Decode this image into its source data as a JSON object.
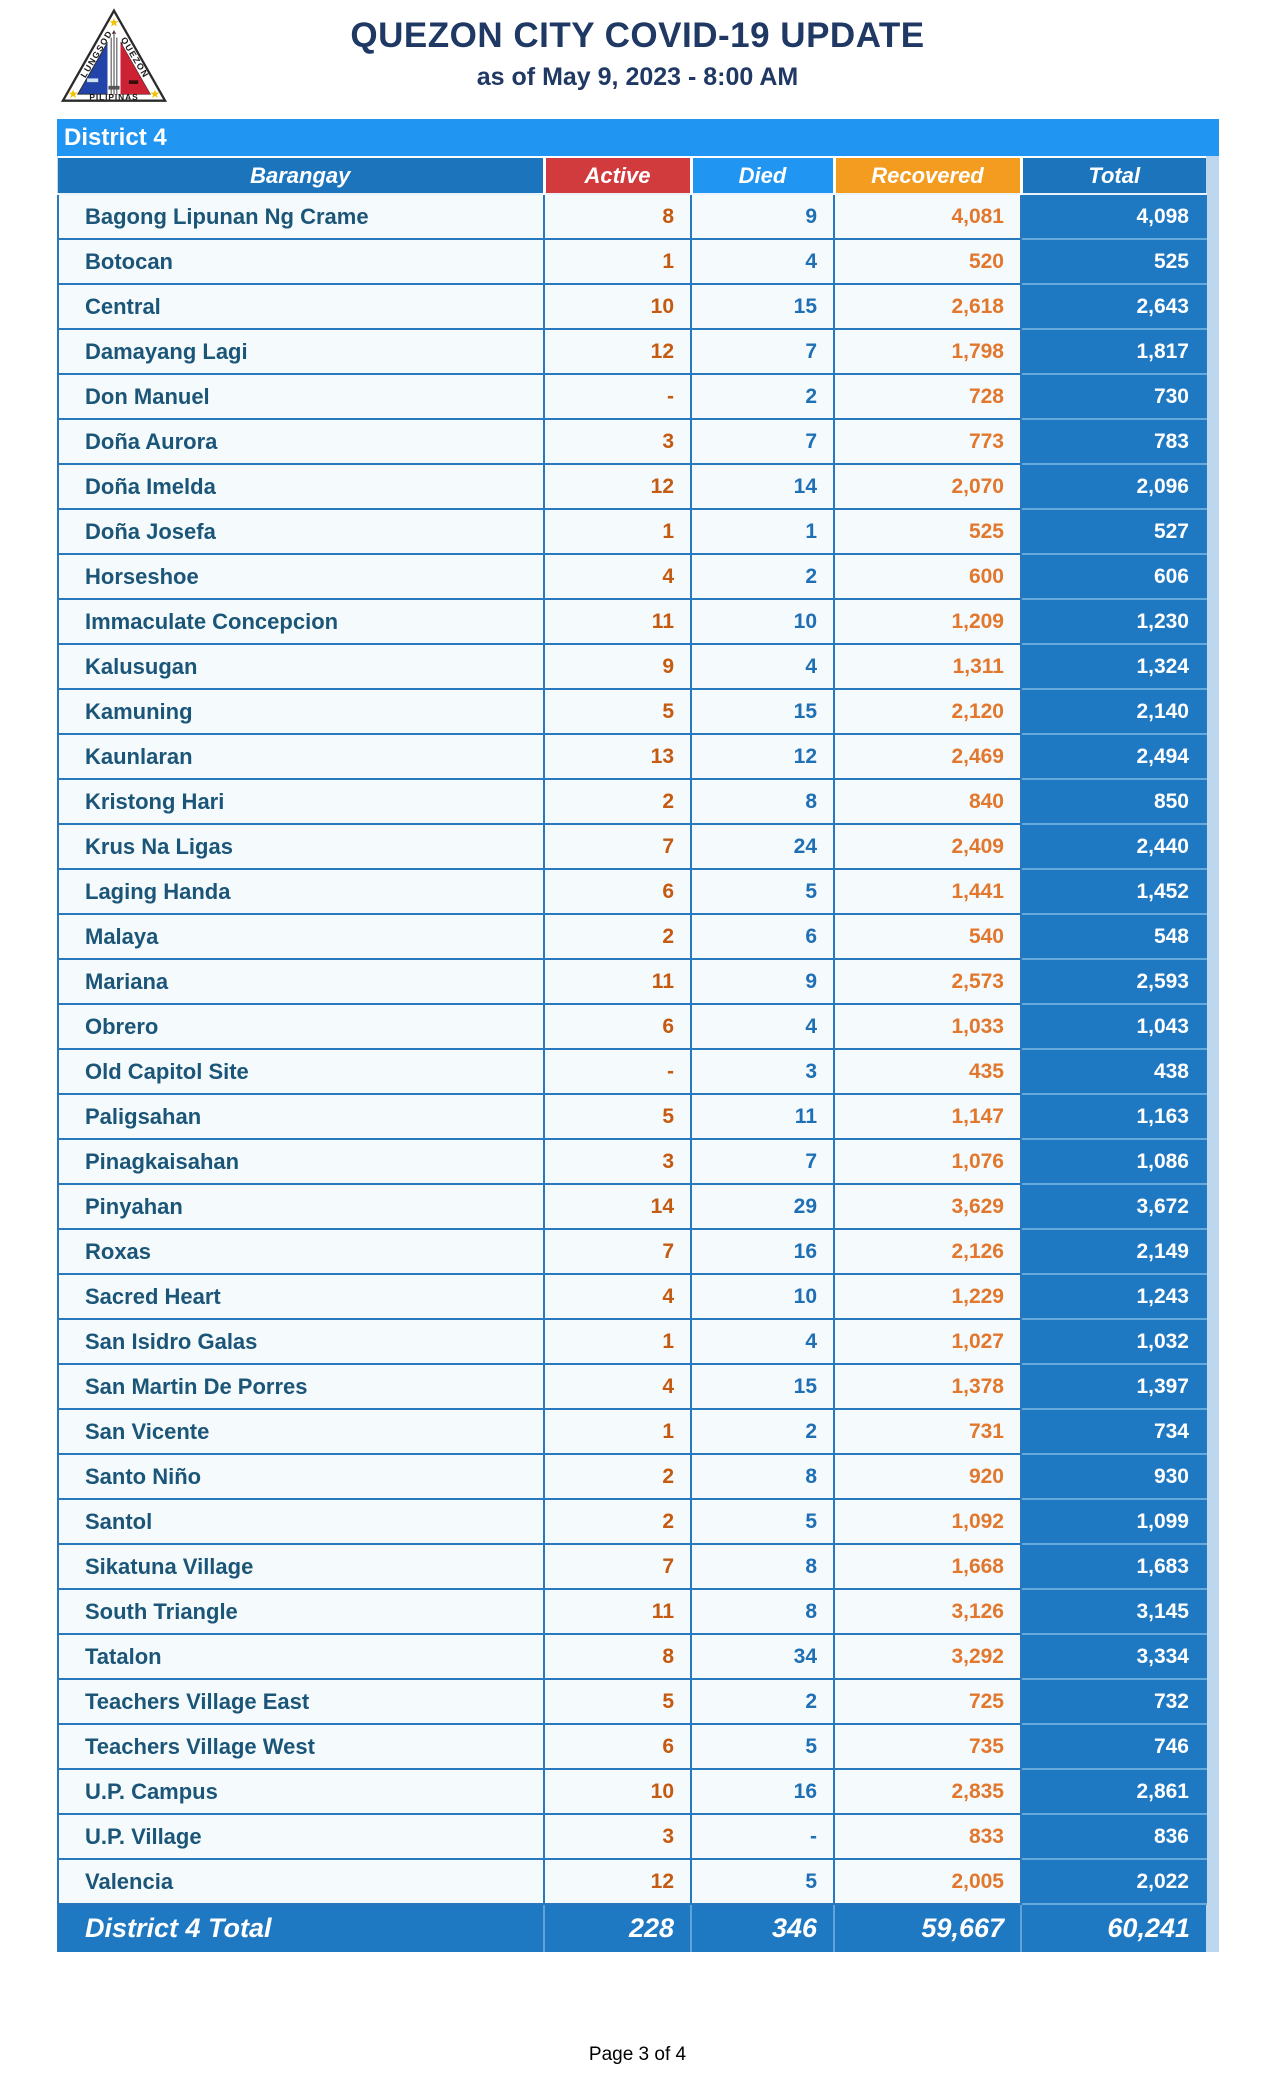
{
  "header": {
    "title": "QUEZON CITY COVID-19 UPDATE",
    "subtitle": "as of May 9, 2023 - 8:00 AM",
    "logo": {
      "left_text": "LUNGSOD",
      "right_text": "QUEZON",
      "bottom_text": "PILIPINAS"
    }
  },
  "table": {
    "district_label": "District 4",
    "columns": [
      {
        "key": "barangay",
        "label": "Barangay"
      },
      {
        "key": "active",
        "label": "Active"
      },
      {
        "key": "died",
        "label": "Died"
      },
      {
        "key": "recovered",
        "label": "Recovered"
      },
      {
        "key": "total",
        "label": "Total"
      }
    ],
    "rows": [
      {
        "barangay": "Bagong Lipunan Ng Crame",
        "active": "8",
        "died": "9",
        "recovered": "4,081",
        "total": "4,098"
      },
      {
        "barangay": "Botocan",
        "active": "1",
        "died": "4",
        "recovered": "520",
        "total": "525"
      },
      {
        "barangay": "Central",
        "active": "10",
        "died": "15",
        "recovered": "2,618",
        "total": "2,643"
      },
      {
        "barangay": "Damayang Lagi",
        "active": "12",
        "died": "7",
        "recovered": "1,798",
        "total": "1,817"
      },
      {
        "barangay": "Don Manuel",
        "active": "-",
        "died": "2",
        "recovered": "728",
        "total": "730"
      },
      {
        "barangay": "Doña Aurora",
        "active": "3",
        "died": "7",
        "recovered": "773",
        "total": "783"
      },
      {
        "barangay": "Doña Imelda",
        "active": "12",
        "died": "14",
        "recovered": "2,070",
        "total": "2,096"
      },
      {
        "barangay": "Doña Josefa",
        "active": "1",
        "died": "1",
        "recovered": "525",
        "total": "527"
      },
      {
        "barangay": "Horseshoe",
        "active": "4",
        "died": "2",
        "recovered": "600",
        "total": "606"
      },
      {
        "barangay": "Immaculate Concepcion",
        "active": "11",
        "died": "10",
        "recovered": "1,209",
        "total": "1,230"
      },
      {
        "barangay": "Kalusugan",
        "active": "9",
        "died": "4",
        "recovered": "1,311",
        "total": "1,324"
      },
      {
        "barangay": "Kamuning",
        "active": "5",
        "died": "15",
        "recovered": "2,120",
        "total": "2,140"
      },
      {
        "barangay": "Kaunlaran",
        "active": "13",
        "died": "12",
        "recovered": "2,469",
        "total": "2,494"
      },
      {
        "barangay": "Kristong Hari",
        "active": "2",
        "died": "8",
        "recovered": "840",
        "total": "850"
      },
      {
        "barangay": "Krus Na Ligas",
        "active": "7",
        "died": "24",
        "recovered": "2,409",
        "total": "2,440"
      },
      {
        "barangay": "Laging Handa",
        "active": "6",
        "died": "5",
        "recovered": "1,441",
        "total": "1,452"
      },
      {
        "barangay": "Malaya",
        "active": "2",
        "died": "6",
        "recovered": "540",
        "total": "548"
      },
      {
        "barangay": "Mariana",
        "active": "11",
        "died": "9",
        "recovered": "2,573",
        "total": "2,593"
      },
      {
        "barangay": "Obrero",
        "active": "6",
        "died": "4",
        "recovered": "1,033",
        "total": "1,043"
      },
      {
        "barangay": "Old Capitol Site",
        "active": "-",
        "died": "3",
        "recovered": "435",
        "total": "438"
      },
      {
        "barangay": "Paligsahan",
        "active": "5",
        "died": "11",
        "recovered": "1,147",
        "total": "1,163"
      },
      {
        "barangay": "Pinagkaisahan",
        "active": "3",
        "died": "7",
        "recovered": "1,076",
        "total": "1,086"
      },
      {
        "barangay": "Pinyahan",
        "active": "14",
        "died": "29",
        "recovered": "3,629",
        "total": "3,672"
      },
      {
        "barangay": "Roxas",
        "active": "7",
        "died": "16",
        "recovered": "2,126",
        "total": "2,149"
      },
      {
        "barangay": "Sacred Heart",
        "active": "4",
        "died": "10",
        "recovered": "1,229",
        "total": "1,243"
      },
      {
        "barangay": "San Isidro Galas",
        "active": "1",
        "died": "4",
        "recovered": "1,027",
        "total": "1,032"
      },
      {
        "barangay": "San Martin De Porres",
        "active": "4",
        "died": "15",
        "recovered": "1,378",
        "total": "1,397"
      },
      {
        "barangay": "San Vicente",
        "active": "1",
        "died": "2",
        "recovered": "731",
        "total": "734"
      },
      {
        "barangay": "Santo Niño",
        "active": "2",
        "died": "8",
        "recovered": "920",
        "total": "930"
      },
      {
        "barangay": "Santol",
        "active": "2",
        "died": "5",
        "recovered": "1,092",
        "total": "1,099"
      },
      {
        "barangay": "Sikatuna Village",
        "active": "7",
        "died": "8",
        "recovered": "1,668",
        "total": "1,683"
      },
      {
        "barangay": "South Triangle",
        "active": "11",
        "died": "8",
        "recovered": "3,126",
        "total": "3,145"
      },
      {
        "barangay": "Tatalon",
        "active": "8",
        "died": "34",
        "recovered": "3,292",
        "total": "3,334"
      },
      {
        "barangay": "Teachers Village East",
        "active": "5",
        "died": "2",
        "recovered": "725",
        "total": "732"
      },
      {
        "barangay": "Teachers Village West",
        "active": "6",
        "died": "5",
        "recovered": "735",
        "total": "746"
      },
      {
        "barangay": "U.P. Campus",
        "active": "10",
        "died": "16",
        "recovered": "2,835",
        "total": "2,861"
      },
      {
        "barangay": "U.P. Village",
        "active": "3",
        "died": "-",
        "recovered": "833",
        "total": "836"
      },
      {
        "barangay": "Valencia",
        "active": "12",
        "died": "5",
        "recovered": "2,005",
        "total": "2,022"
      }
    ],
    "total_row": {
      "label": "District 4 Total",
      "active": "228",
      "died": "346",
      "recovered": "59,667",
      "total": "60,241"
    }
  },
  "footer": {
    "page_label": "Page 3 of 4"
  },
  "colors": {
    "title_navy": "#1F3864",
    "band_blue": "#2095F2",
    "header_dark_blue": "#1C75BC",
    "active_header_red": "#D23B3E",
    "recovered_header_orange": "#F39C1F",
    "active_value_orange": "#C55A11",
    "died_value_blue": "#1F6FB5",
    "recovered_value_orange": "#E2772E",
    "total_cell_blue": "#1E78C2",
    "barangay_text": "#1B5578",
    "table_border_blue": "#2878BE",
    "table_edge_light_blue": "#BDD7EE",
    "row_background": "#F5FAFD"
  }
}
